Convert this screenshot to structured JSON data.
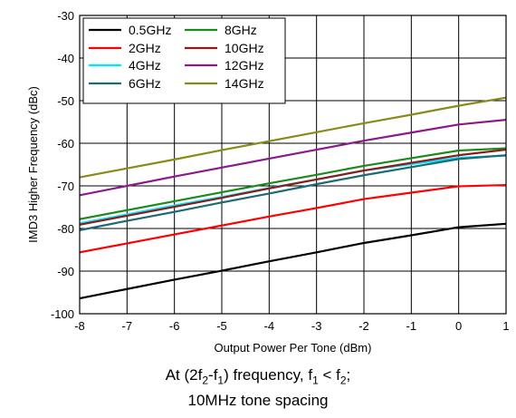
{
  "chart_data": {
    "type": "line",
    "xlabel": "Output Power Per Tone (dBm)",
    "ylabel": "IMD3 Higher Frequency (dBc)",
    "xlim": [
      -8,
      1
    ],
    "ylim": [
      -100,
      -30
    ],
    "xticks": [
      "-8",
      "-7",
      "-6",
      "-5",
      "-4",
      "-3",
      "-2",
      "-1",
      "0",
      "1"
    ],
    "yticks": [
      "-30",
      "-40",
      "-50",
      "-60",
      "-70",
      "-80",
      "-90",
      "-100"
    ],
    "grid": true,
    "legend_position": "top-left",
    "x": [
      -8,
      -7,
      -6,
      -5,
      -4,
      -3,
      -2,
      -1,
      0,
      1
    ],
    "series": [
      {
        "name": "0.5GHz",
        "color": "#000000",
        "values": [
          -96.4,
          -94.2,
          -92.0,
          -89.9,
          -87.7,
          -85.6,
          -83.4,
          -81.6,
          -79.7,
          -78.9
        ]
      },
      {
        "name": "2GHz",
        "color": "#ff0000",
        "values": [
          -85.6,
          -83.5,
          -81.4,
          -79.3,
          -77.2,
          -75.2,
          -73.1,
          -71.6,
          -70.1,
          -69.8
        ]
      },
      {
        "name": "4GHz",
        "color": "#00e5ff",
        "values": [
          -78.8,
          -76.7,
          -74.6,
          -72.6,
          -70.5,
          -68.5,
          -66.4,
          -64.9,
          -63.4,
          -62.9
        ]
      },
      {
        "name": "6GHz",
        "color": "#1a6b73",
        "values": [
          -80.4,
          -78.2,
          -76.1,
          -73.9,
          -71.8,
          -69.6,
          -67.5,
          -65.6,
          -63.7,
          -62.8
        ]
      },
      {
        "name": "8GHz",
        "color": "#1a8a1a",
        "values": [
          -77.8,
          -75.7,
          -73.6,
          -71.5,
          -69.4,
          -67.4,
          -65.3,
          -63.5,
          -61.7,
          -61.2
        ]
      },
      {
        "name": "10GHz",
        "color": "#8b1a1a",
        "values": [
          -79.1,
          -77.0,
          -74.9,
          -72.8,
          -70.6,
          -68.5,
          -66.4,
          -64.6,
          -62.8,
          -61.5
        ]
      },
      {
        "name": "12GHz",
        "color": "#8b1a8b",
        "values": [
          -72.2,
          -70.0,
          -67.8,
          -65.7,
          -63.6,
          -61.5,
          -59.4,
          -57.5,
          -55.6,
          -54.5
        ]
      },
      {
        "name": "14GHz",
        "color": "#8a8a1a",
        "values": [
          -68.0,
          -65.9,
          -63.8,
          -61.6,
          -59.5,
          -57.4,
          -55.3,
          -53.3,
          -51.2,
          -49.3
        ]
      }
    ]
  },
  "caption": {
    "line1_prefix": "At (2f",
    "sub_a": "2",
    "mid_a": "-f",
    "sub_b": "1",
    "mid_b": ") frequency, f",
    "sub_c": "1",
    "mid_c": " < f",
    "sub_d": "2",
    "line1_suffix": ";",
    "line2": "10MHz tone spacing"
  }
}
